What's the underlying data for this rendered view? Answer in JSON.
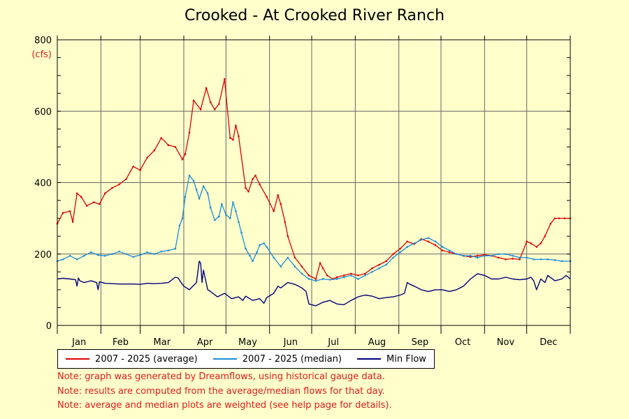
{
  "chart_data": {
    "type": "line",
    "title": "Crooked - At Crooked River Ranch",
    "ylabel": "(cfs)",
    "xlabel": "",
    "ylim": [
      0,
      800
    ],
    "yticks": [
      0,
      200,
      400,
      600,
      800
    ],
    "xlim": [
      1,
      366
    ],
    "x_tick_labels": [
      "Jan",
      "Feb",
      "Mar",
      "Apr",
      "May",
      "Jun",
      "Jul",
      "Aug",
      "Sep",
      "Oct",
      "Nov",
      "Dec"
    ],
    "grid": true,
    "legend_position": "bottom",
    "x_unit": "day of year",
    "series": [
      {
        "name": "2007 - 2025 (average)",
        "color": "#dd0000",
        "x": [
          1,
          5,
          10,
          12,
          15,
          18,
          22,
          27,
          31,
          35,
          40,
          45,
          50,
          55,
          60,
          65,
          70,
          75,
          80,
          85,
          90,
          92,
          95,
          98,
          103,
          107,
          110,
          113,
          116,
          120,
          124,
          126,
          128,
          130,
          135,
          137,
          140,
          142,
          145,
          150,
          155,
          158,
          160,
          163,
          165,
          170,
          175,
          180,
          185,
          188,
          190,
          193,
          197,
          200,
          205,
          210,
          215,
          220,
          225,
          230,
          235,
          240,
          245,
          250,
          255,
          260,
          265,
          270,
          275,
          280,
          285,
          290,
          295,
          300,
          305,
          310,
          315,
          320,
          325,
          330,
          335,
          338,
          342,
          345,
          348,
          352,
          355,
          358,
          362,
          366
        ],
        "y": [
          285,
          315,
          320,
          290,
          370,
          360,
          335,
          345,
          340,
          370,
          385,
          395,
          410,
          445,
          435,
          470,
          490,
          525,
          505,
          500,
          465,
          480,
          540,
          630,
          605,
          665,
          625,
          605,
          620,
          690,
          525,
          520,
          560,
          530,
          385,
          375,
          410,
          420,
          395,
          360,
          320,
          365,
          340,
          290,
          250,
          190,
          165,
          140,
          130,
          175,
          160,
          140,
          130,
          135,
          140,
          145,
          140,
          145,
          160,
          170,
          180,
          200,
          215,
          235,
          228,
          242,
          235,
          225,
          210,
          205,
          200,
          195,
          192,
          195,
          198,
          195,
          190,
          185,
          187,
          185,
          235,
          230,
          220,
          230,
          250,
          285,
          300,
          300,
          300,
          300
        ]
      },
      {
        "name": "2007 - 2025 (median)",
        "color": "#1a8bd6",
        "x": [
          1,
          5,
          10,
          15,
          20,
          25,
          30,
          35,
          40,
          45,
          50,
          55,
          60,
          65,
          70,
          75,
          80,
          85,
          88,
          90,
          92,
          95,
          98,
          100,
          102,
          105,
          108,
          110,
          113,
          116,
          118,
          121,
          124,
          126,
          128,
          130,
          132,
          135,
          138,
          140,
          143,
          145,
          148,
          150,
          155,
          160,
          165,
          170,
          175,
          180,
          185,
          190,
          195,
          200,
          205,
          210,
          215,
          220,
          225,
          230,
          235,
          240,
          245,
          250,
          255,
          260,
          265,
          270,
          275,
          280,
          285,
          290,
          295,
          300,
          305,
          310,
          315,
          320,
          325,
          330,
          335,
          340,
          345,
          350,
          355,
          360,
          366
        ],
        "y": [
          180,
          185,
          195,
          185,
          195,
          205,
          197,
          195,
          200,
          207,
          200,
          192,
          197,
          205,
          200,
          207,
          210,
          215,
          280,
          300,
          360,
          420,
          405,
          380,
          355,
          390,
          370,
          330,
          295,
          305,
          340,
          310,
          300,
          345,
          320,
          290,
          260,
          215,
          195,
          180,
          205,
          225,
          230,
          220,
          190,
          165,
          190,
          165,
          145,
          130,
          125,
          130,
          128,
          130,
          135,
          140,
          130,
          140,
          150,
          160,
          170,
          190,
          205,
          220,
          230,
          240,
          245,
          235,
          220,
          210,
          200,
          195,
          195,
          190,
          195,
          195,
          200,
          200,
          195,
          190,
          190,
          185,
          185,
          185,
          183,
          180,
          180
        ]
      },
      {
        "name": "Min Flow",
        "color": "#00007a",
        "x": [
          1,
          5,
          10,
          14,
          15,
          16,
          17,
          20,
          25,
          29,
          30,
          31,
          35,
          40,
          45,
          50,
          55,
          60,
          65,
          70,
          75,
          80,
          85,
          87,
          89,
          91,
          95,
          100,
          102,
          103,
          104,
          105,
          108,
          110,
          115,
          120,
          125,
          130,
          133,
          135,
          140,
          145,
          148,
          150,
          155,
          158,
          160,
          165,
          170,
          175,
          178,
          180,
          185,
          190,
          195,
          200,
          205,
          210,
          215,
          220,
          225,
          230,
          235,
          240,
          245,
          248,
          250,
          252,
          255,
          260,
          265,
          270,
          275,
          280,
          285,
          290,
          295,
          300,
          305,
          310,
          315,
          320,
          325,
          330,
          335,
          338,
          340,
          342,
          345,
          348,
          350,
          355,
          360,
          363,
          366
        ],
        "y": [
          130,
          132,
          130,
          128,
          110,
          133,
          125,
          120,
          125,
          120,
          100,
          122,
          118,
          117,
          116,
          116,
          116,
          115,
          118,
          117,
          118,
          120,
          135,
          133,
          120,
          110,
          100,
          120,
          180,
          175,
          120,
          155,
          100,
          95,
          80,
          90,
          75,
          80,
          70,
          82,
          70,
          75,
          62,
          78,
          90,
          110,
          105,
          120,
          115,
          105,
          95,
          60,
          55,
          65,
          70,
          60,
          58,
          70,
          80,
          85,
          82,
          75,
          78,
          80,
          85,
          90,
          120,
          115,
          110,
          100,
          95,
          100,
          100,
          95,
          100,
          110,
          130,
          145,
          140,
          130,
          130,
          135,
          130,
          128,
          130,
          135,
          125,
          100,
          130,
          120,
          140,
          125,
          130,
          140,
          130
        ]
      }
    ]
  },
  "notes": [
    "Note: graph was generated by Dreamflows, using historical gauge data.",
    "Note: results are computed from the average/median flows for that day.",
    "Note: average and median plots are weighted (see help page for details)."
  ]
}
